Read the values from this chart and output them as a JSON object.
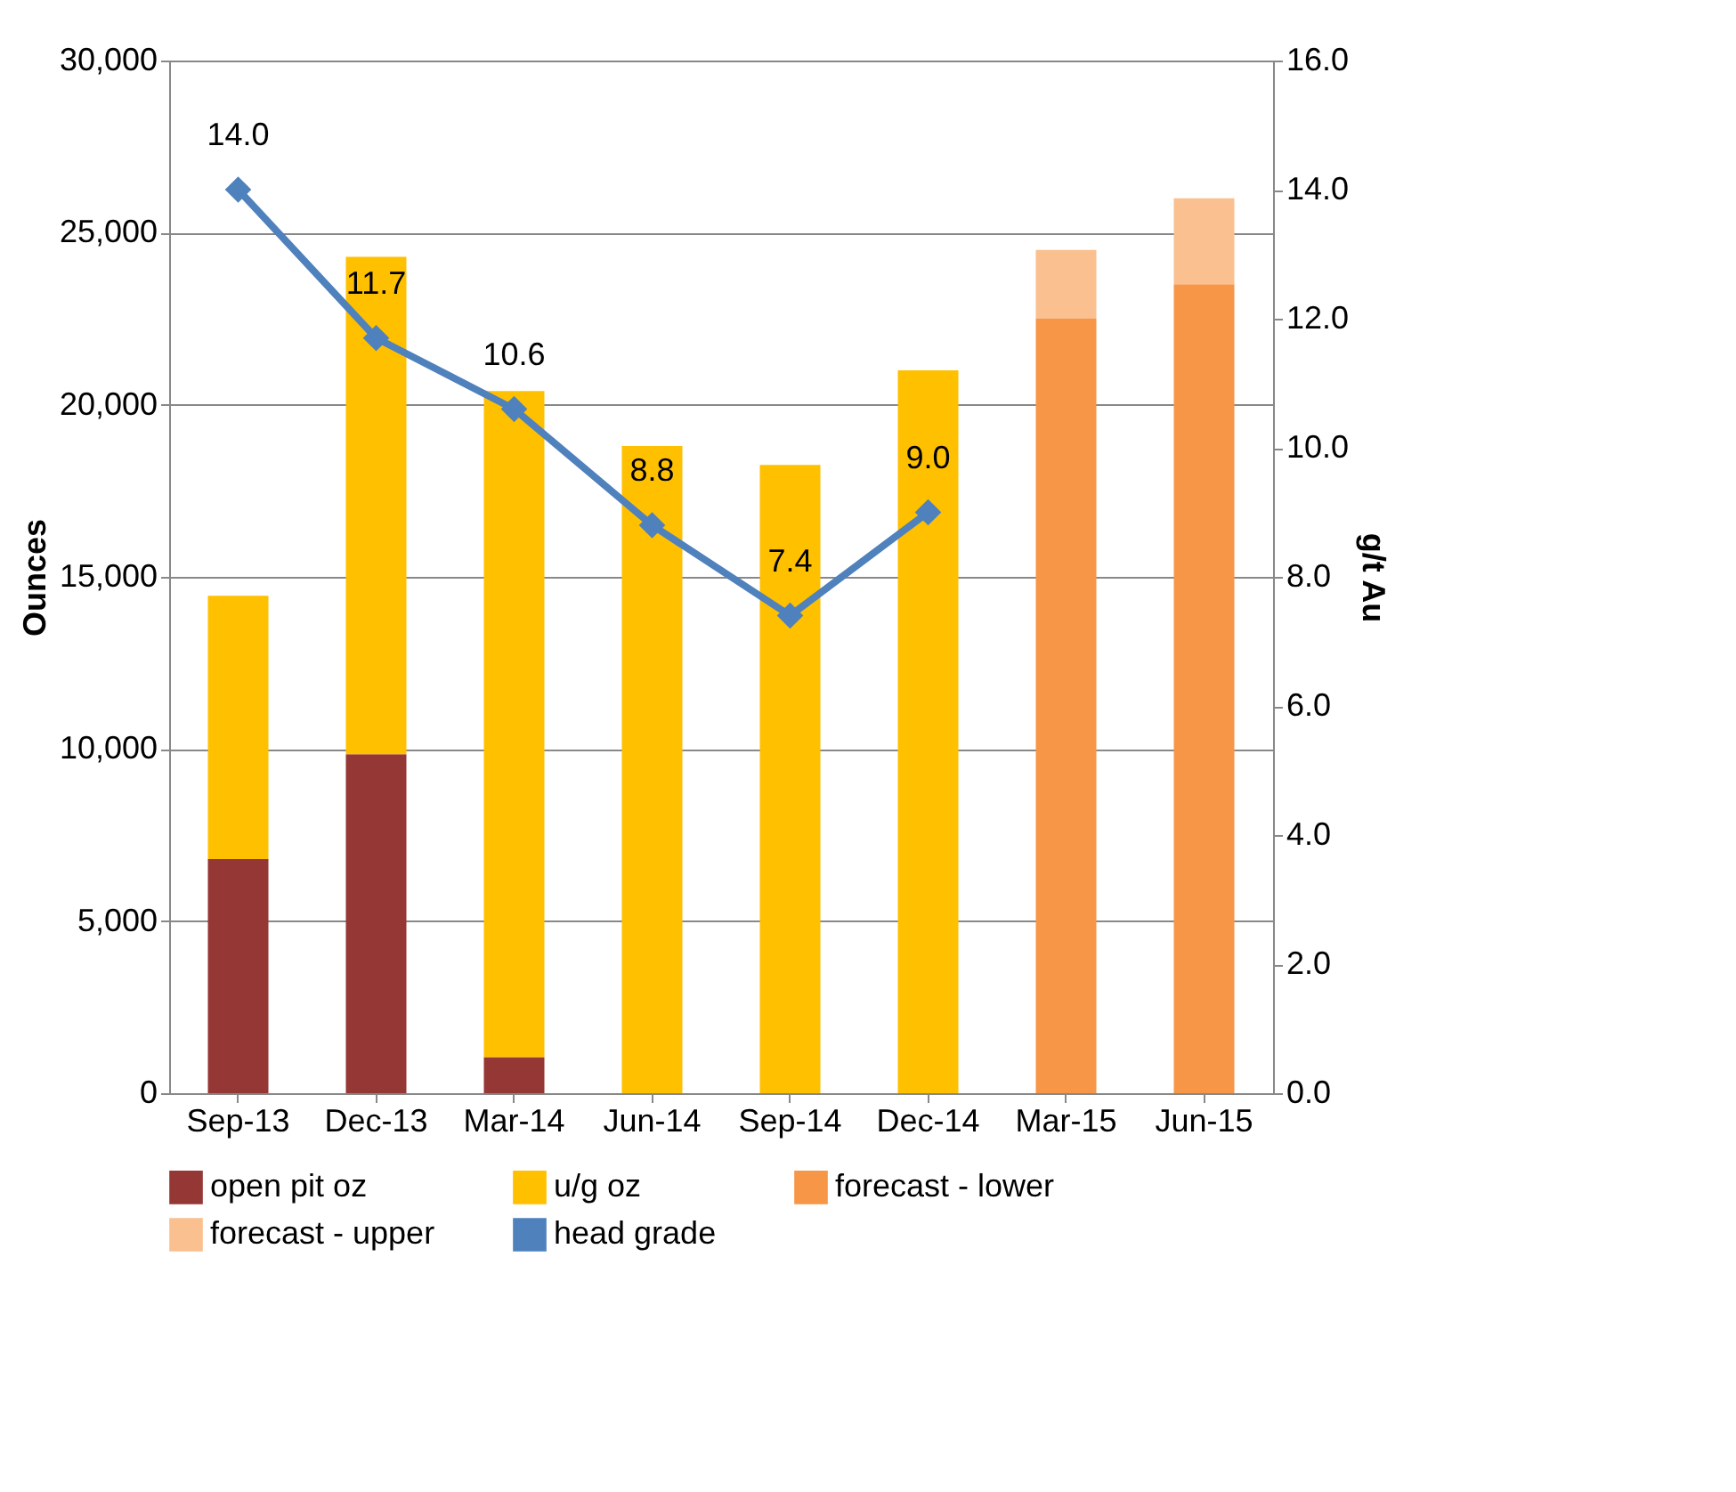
{
  "chart_data": {
    "type": "bar",
    "stacked": true,
    "categories": [
      "Sep-13",
      "Dec-13",
      "Mar-14",
      "Jun-14",
      "Sep-14",
      "Dec-14",
      "Mar-15",
      "Jun-15"
    ],
    "ylabel": "Ounces",
    "y2label": "g/t Au",
    "ylim": [
      0,
      30000
    ],
    "yticks": [
      {
        "value": 0,
        "label": "0"
      },
      {
        "value": 5000,
        "label": "5,000"
      },
      {
        "value": 10000,
        "label": "10,000"
      },
      {
        "value": 15000,
        "label": "15,000"
      },
      {
        "value": 20000,
        "label": "20,000"
      },
      {
        "value": 25000,
        "label": "25,000"
      },
      {
        "value": 30000,
        "label": "30,000"
      }
    ],
    "y2lim": [
      0,
      16
    ],
    "y2ticks": [
      {
        "value": 0,
        "label": "0.0"
      },
      {
        "value": 2,
        "label": "2.0"
      },
      {
        "value": 4,
        "label": "4.0"
      },
      {
        "value": 6,
        "label": "6.0"
      },
      {
        "value": 8,
        "label": "8.0"
      },
      {
        "value": 10,
        "label": "10.0"
      },
      {
        "value": 12,
        "label": "12.0"
      },
      {
        "value": 14,
        "label": "14.0"
      },
      {
        "value": 16,
        "label": "16.0"
      }
    ],
    "grid": "y",
    "legend": "bottom",
    "marker": "diamond",
    "series": [
      {
        "name": "open pit oz",
        "color": "#953735",
        "values": [
          6800,
          9850,
          1050,
          null,
          null,
          null,
          null,
          null
        ]
      },
      {
        "name": "u/g oz",
        "color": "#ffc000",
        "values": [
          7650,
          14450,
          19350,
          18800,
          18250,
          21000,
          null,
          null
        ]
      },
      {
        "name": "forecast - lower",
        "color": "#f79646",
        "values": [
          null,
          null,
          null,
          null,
          null,
          null,
          22500,
          23500
        ]
      },
      {
        "name": "forecast - upper",
        "color": "#fac090",
        "values": [
          null,
          null,
          null,
          null,
          null,
          null,
          2000,
          2500
        ]
      },
      {
        "name": "head grade",
        "color": "#4f81bd",
        "type": "line",
        "axis": "y2",
        "values": [
          14.0,
          11.7,
          10.6,
          8.8,
          7.4,
          9.0,
          null,
          null
        ],
        "value_labels": [
          "14.0",
          "11.7",
          "10.6",
          "8.8",
          "7.4",
          "9.0",
          null,
          null
        ]
      }
    ]
  }
}
